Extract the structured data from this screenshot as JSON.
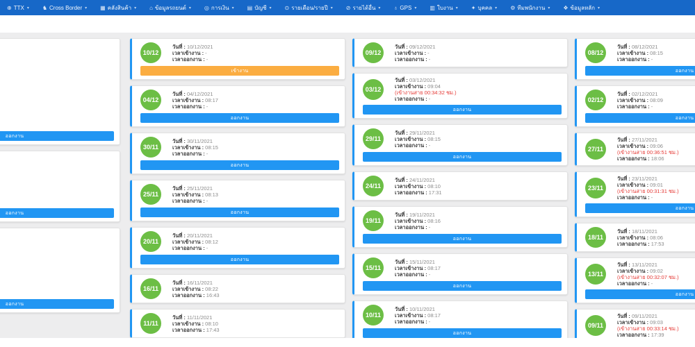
{
  "colors": {
    "navbar_bg": "#1768C8",
    "accent_blue": "#2196F3",
    "badge_green": "#6CBE45",
    "warn_orange": "#FBAD41",
    "late_red": "#E53935",
    "content_bg": "#EDEDEE"
  },
  "navbar": {
    "caret": "▾",
    "items": [
      {
        "key": "ttx",
        "icon": "⊕",
        "label": "TTX"
      },
      {
        "key": "cross-border",
        "icon": "♞",
        "label": "Cross Border"
      },
      {
        "key": "warehouse",
        "icon": "▦",
        "label": "คลังสินค้า"
      },
      {
        "key": "vehicle-data",
        "icon": "⌂",
        "label": "ข้อมูลรถยนต์"
      },
      {
        "key": "finance",
        "icon": "◎",
        "label": "การเงิน"
      },
      {
        "key": "accounting",
        "icon": "▤",
        "label": "บัญชี"
      },
      {
        "key": "monthly",
        "icon": "⊙",
        "label": "รายเดือน/รายปี"
      },
      {
        "key": "other-income",
        "icon": "⊘",
        "label": "รายได้อื่น"
      },
      {
        "key": "gps",
        "icon": "♁",
        "label": "GPS"
      },
      {
        "key": "job-sheet",
        "icon": "▥",
        "label": "ใบงาน"
      },
      {
        "key": "personnel",
        "icon": "✦",
        "label": "บุคคล"
      },
      {
        "key": "staff-team",
        "icon": "⚙",
        "label": "ทีมพนักงาน"
      },
      {
        "key": "master-data",
        "icon": "❖",
        "label": "ข้อมูลหลัก"
      }
    ]
  },
  "labels": {
    "date": "วันที่ :",
    "time_in": "เวลาเข้างาน :",
    "time_out": "เวลาออกงาน :"
  },
  "buttons": {
    "in": "เข้างาน",
    "out": "ออกงาน"
  },
  "columns": [
    {
      "name": "column-a",
      "cards": [
        {
          "spacer": 124,
          "button": "out"
        },
        {
          "spacer": 73,
          "button": "out"
        },
        {
          "spacer": 93,
          "button": "out"
        }
      ]
    },
    {
      "name": "column-b",
      "cards": [
        {
          "day": "10/12",
          "date": "10/12/2021",
          "time_in": "-",
          "time_out": "-",
          "button": "in"
        },
        {
          "day": "04/12",
          "date": "04/12/2021",
          "time_in": "08:17",
          "time_out": "-",
          "button": "out"
        },
        {
          "day": "30/11",
          "date": "30/11/2021",
          "time_in": "08:15",
          "time_out": "-",
          "button": "out"
        },
        {
          "day": "25/11",
          "date": "25/11/2021",
          "time_in": "08:13",
          "time_out": "-",
          "button": "out"
        },
        {
          "day": "20/11",
          "date": "20/11/2021",
          "time_in": "08:12",
          "time_out": "-",
          "button": "out"
        },
        {
          "day": "16/11",
          "date": "16/11/2021",
          "time_in": "08:22",
          "time_out": "16:43",
          "button": null
        },
        {
          "day": "11/11",
          "date": "11/11/2021",
          "time_in": "08:10",
          "time_out": "17:43",
          "button": null
        }
      ]
    },
    {
      "name": "column-c",
      "cards": [
        {
          "day": "09/12",
          "date": "09/12/2021",
          "time_in": "-",
          "time_out": "-",
          "button": null
        },
        {
          "day": "03/12",
          "date": "03/12/2021",
          "time_in": "09:04",
          "late": "(เข้างานสาย 00:34:32 ชม.)",
          "time_out": "-",
          "button": "out"
        },
        {
          "day": "29/11",
          "date": "29/11/2021",
          "time_in": "08:15",
          "time_out": "-",
          "button": "out"
        },
        {
          "day": "24/11",
          "date": "24/11/2021",
          "time_in": "08:10",
          "time_out": "17:31",
          "button": null
        },
        {
          "day": "19/11",
          "date": "19/11/2021",
          "time_in": "08:16",
          "time_out": "-",
          "button": "out"
        },
        {
          "day": "15/11",
          "date": "15/11/2021",
          "time_in": "08:17",
          "time_out": "-",
          "button": "out"
        },
        {
          "day": "10/11",
          "date": "10/11/2021",
          "time_in": "08:17",
          "time_out": "-",
          "button": "out"
        }
      ]
    },
    {
      "name": "column-d",
      "cards": [
        {
          "day": "08/12",
          "date": "08/12/2021",
          "time_in": "08:15",
          "time_out": "-",
          "button": "out"
        },
        {
          "day": "02/12",
          "date": "02/12/2021",
          "time_in": "08:09",
          "time_out": "-",
          "button": "out"
        },
        {
          "day": "27/11",
          "date": "27/11/2021",
          "time_in": "09:06",
          "late": "(เข้างานสาย 00:36:51 ชม.)",
          "time_out": "18:06",
          "button": null
        },
        {
          "day": "23/11",
          "date": "23/11/2021",
          "time_in": "09:01",
          "late": "(เข้างานสาย 00:31:31 ชม.)",
          "time_out": "-",
          "button": "out"
        },
        {
          "day": "18/11",
          "date": "18/11/2021",
          "time_in": "08:06",
          "time_out": "17:53",
          "button": null
        },
        {
          "day": "13/11",
          "date": "13/11/2021",
          "time_in": "09:02",
          "late": "(เข้างานสาย 00:32:07 ชม.)",
          "time_out": "-",
          "button": "out"
        },
        {
          "day": "09/11",
          "date": "09/11/2021",
          "time_in": "09:03",
          "late": "(เข้างานสาย 00:33:14 ชม.)",
          "time_out": "17:39",
          "button": null
        }
      ]
    }
  ]
}
